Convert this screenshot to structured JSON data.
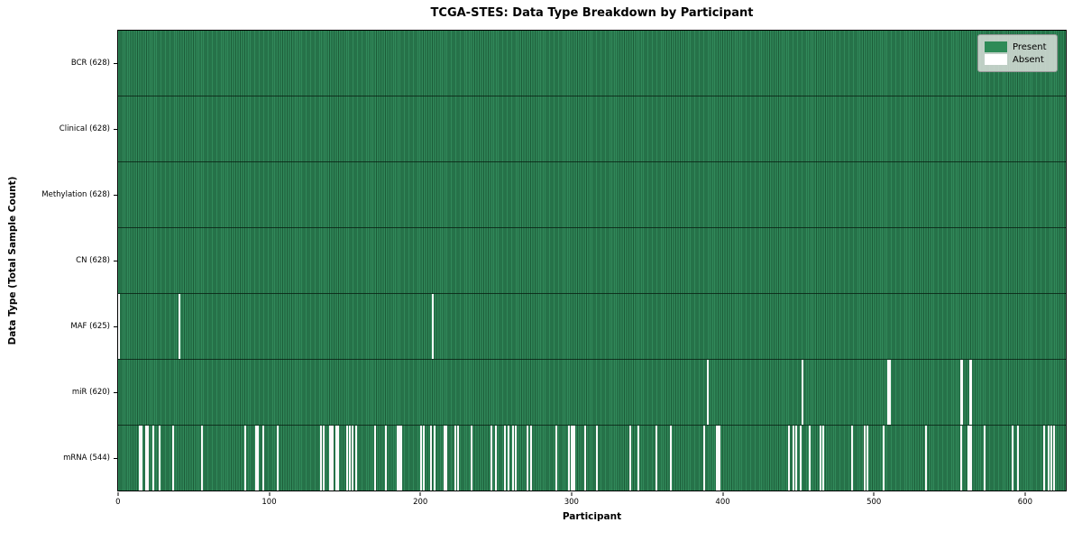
{
  "title": "TCGA-STES: Data Type Breakdown by Participant",
  "xlabel": "Participant",
  "ylabel": "Data Type (Total Sample Count)",
  "colors": {
    "present": "#2e8b57",
    "present_stripe_dark": "#1c5c38",
    "absent": "#fafafa",
    "legend_bg": "#d9ded9",
    "spine": "#000000"
  },
  "legend": {
    "position": "upper right",
    "items": [
      {
        "label": "Present",
        "color": "#2e8b57"
      },
      {
        "label": "Absent",
        "color": "#ffffff"
      }
    ]
  },
  "chart_data": {
    "type": "heatmap",
    "title": "TCGA-STES: Data Type Breakdown by Participant",
    "xlabel": "Participant",
    "ylabel": "Data Type (Total Sample Count)",
    "grid": false,
    "n_participants": 628,
    "xlim": [
      -0.5,
      627.5
    ],
    "x_ticks": [
      0,
      100,
      200,
      300,
      400,
      500,
      600
    ],
    "legend_entries": [
      "Present",
      "Absent"
    ],
    "value_encoding": {
      "present": 1,
      "absent": 0
    },
    "rows": [
      {
        "label": "BCR (628)",
        "name": "BCR",
        "present_count": 628,
        "absent_participants": []
      },
      {
        "label": "Clinical (628)",
        "name": "Clinical",
        "present_count": 628,
        "absent_participants": []
      },
      {
        "label": "Methylation (628)",
        "name": "Methylation",
        "present_count": 628,
        "absent_participants": []
      },
      {
        "label": "CN (628)",
        "name": "CN",
        "present_count": 628,
        "absent_participants": []
      },
      {
        "label": "MAF (625)",
        "name": "MAF",
        "present_count": 625,
        "absent_participants": [
          0,
          40,
          208
        ]
      },
      {
        "label": "miR (620)",
        "name": "miR",
        "present_count": 620,
        "absent_participants": [
          390,
          453,
          510,
          511,
          558,
          559,
          564,
          565
        ]
      },
      {
        "label": "mRNA (544)",
        "name": "mRNA",
        "present_count": 544,
        "absent_participants": [
          14,
          15,
          18,
          19,
          23,
          27,
          36,
          55,
          84,
          91,
          92,
          96,
          105,
          134,
          136,
          140,
          141,
          142,
          144,
          145,
          151,
          153,
          155,
          157,
          170,
          177,
          185,
          186,
          187,
          200,
          202,
          207,
          209,
          216,
          217,
          223,
          225,
          234,
          247,
          250,
          256,
          258,
          261,
          263,
          271,
          273,
          290,
          298,
          300,
          301,
          302,
          309,
          317,
          339,
          344,
          356,
          366,
          388,
          396,
          397,
          398,
          444,
          447,
          449,
          452,
          458,
          465,
          467,
          486,
          494,
          496,
          507,
          535,
          558,
          563,
          564,
          565,
          574,
          592,
          596,
          613,
          616,
          618,
          620
        ]
      }
    ]
  }
}
